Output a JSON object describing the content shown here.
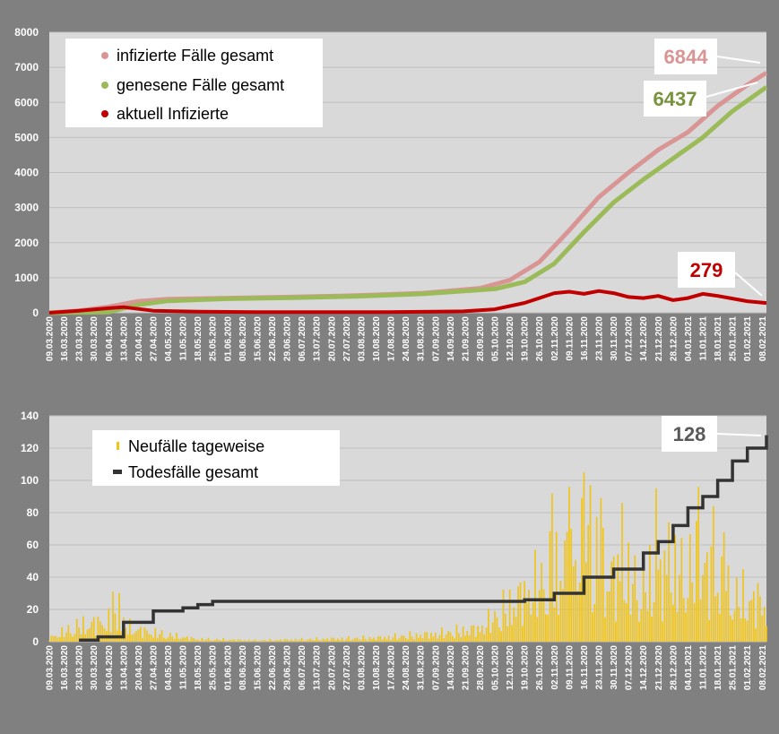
{
  "chart_data": [
    {
      "type": "line",
      "ylim": [
        0,
        8000
      ],
      "yticks": [
        0,
        1000,
        2000,
        3000,
        4000,
        5000,
        6000,
        7000,
        8000
      ],
      "xlim": [
        "2020-03-09",
        "2021-02-10"
      ],
      "xtick_labels": [
        "09.03.2020",
        "16.03.2020",
        "23.03.2020",
        "30.03.2020",
        "06.04.2020",
        "13.04.2020",
        "20.04.2020",
        "27.04.2020",
        "04.05.2020",
        "11.05.2020",
        "18.05.2020",
        "25.05.2020",
        "01.06.2020",
        "08.06.2020",
        "15.06.2020",
        "22.06.2020",
        "29.06.2020",
        "06.07.2020",
        "13.07.2020",
        "20.07.2020",
        "27.07.2020",
        "03.08.2020",
        "10.08.2020",
        "17.08.2020",
        "24.08.2020",
        "31.08.2020",
        "07.09.2020",
        "14.09.2020",
        "21.09.2020",
        "28.09.2020",
        "05.10.2020",
        "12.10.2020",
        "19.10.2020",
        "26.10.2020",
        "02.11.2020",
        "09.11.2020",
        "16.11.2020",
        "23.11.2020",
        "30.11.2020",
        "07.12.2020",
        "14.12.2020",
        "21.12.2020",
        "28.12.2020",
        "04.01.2021",
        "11.01.2021",
        "18.01.2021",
        "25.01.2021",
        "01.02.2021",
        "08.02.2021"
      ],
      "grid": true,
      "legend_position": "top-left",
      "series": [
        {
          "name": "infizierte Fälle gesamt",
          "color": "#d99594",
          "points": [
            [
              "2020-03-09",
              0
            ],
            [
              "2020-03-23",
              60
            ],
            [
              "2020-04-06",
              170
            ],
            [
              "2020-04-20",
              330
            ],
            [
              "2020-05-04",
              390
            ],
            [
              "2020-06-01",
              420
            ],
            [
              "2020-07-01",
              450
            ],
            [
              "2020-08-01",
              490
            ],
            [
              "2020-09-01",
              560
            ],
            [
              "2020-09-28",
              700
            ],
            [
              "2020-10-12",
              930
            ],
            [
              "2020-10-26",
              1450
            ],
            [
              "2020-11-09",
              2350
            ],
            [
              "2020-11-23",
              3300
            ],
            [
              "2020-12-07",
              4000
            ],
            [
              "2020-12-21",
              4650
            ],
            [
              "2021-01-04",
              5150
            ],
            [
              "2021-01-18",
              5900
            ],
            [
              "2021-02-01",
              6500
            ],
            [
              "2021-02-10",
              6844
            ]
          ]
        },
        {
          "name": "genesene Fälle gesamt",
          "color": "#9bbb59",
          "points": [
            [
              "2020-03-09",
              0
            ],
            [
              "2020-04-06",
              20
            ],
            [
              "2020-04-20",
              230
            ],
            [
              "2020-05-04",
              340
            ],
            [
              "2020-06-01",
              400
            ],
            [
              "2020-07-01",
              430
            ],
            [
              "2020-08-01",
              470
            ],
            [
              "2020-09-01",
              540
            ],
            [
              "2020-10-05",
              680
            ],
            [
              "2020-10-19",
              880
            ],
            [
              "2020-11-02",
              1400
            ],
            [
              "2020-11-16",
              2300
            ],
            [
              "2020-11-30",
              3150
            ],
            [
              "2020-12-14",
              3800
            ],
            [
              "2020-12-28",
              4400
            ],
            [
              "2021-01-11",
              5000
            ],
            [
              "2021-01-25",
              5750
            ],
            [
              "2021-02-10",
              6437
            ]
          ]
        },
        {
          "name": "aktuell Infizierte",
          "color": "#c00000",
          "points": [
            [
              "2020-03-09",
              0
            ],
            [
              "2020-03-23",
              60
            ],
            [
              "2020-04-06",
              130
            ],
            [
              "2020-04-13",
              160
            ],
            [
              "2020-04-27",
              60
            ],
            [
              "2020-05-18",
              30
            ],
            [
              "2020-06-15",
              20
            ],
            [
              "2020-08-15",
              20
            ],
            [
              "2020-09-20",
              40
            ],
            [
              "2020-10-05",
              100
            ],
            [
              "2020-10-19",
              280
            ],
            [
              "2020-11-02",
              560
            ],
            [
              "2020-11-09",
              600
            ],
            [
              "2020-11-16",
              540
            ],
            [
              "2020-11-23",
              620
            ],
            [
              "2020-11-30",
              560
            ],
            [
              "2020-12-07",
              450
            ],
            [
              "2020-12-14",
              420
            ],
            [
              "2020-12-21",
              480
            ],
            [
              "2020-12-28",
              360
            ],
            [
              "2021-01-04",
              420
            ],
            [
              "2021-01-11",
              540
            ],
            [
              "2021-01-18",
              480
            ],
            [
              "2021-02-01",
              330
            ],
            [
              "2021-02-10",
              279
            ]
          ]
        }
      ],
      "callouts": [
        {
          "text": "6844",
          "color": "#d99594"
        },
        {
          "text": "6437",
          "color": "#77933c"
        },
        {
          "text": "279",
          "color": "#c00000"
        }
      ]
    },
    {
      "type": "bar+line",
      "ylim": [
        0,
        140
      ],
      "yticks": [
        0,
        20,
        40,
        60,
        80,
        100,
        120,
        140
      ],
      "xlim": [
        "2020-03-09",
        "2021-02-10"
      ],
      "xtick_labels": [
        "09.03.2020",
        "16.03.2020",
        "23.03.2020",
        "30.03.2020",
        "06.04.2020",
        "13.04.2020",
        "20.04.2020",
        "27.04.2020",
        "04.05.2020",
        "11.05.2020",
        "18.05.2020",
        "25.05.2020",
        "01.06.2020",
        "08.06.2020",
        "15.06.2020",
        "22.06.2020",
        "29.06.2020",
        "06.07.2020",
        "13.07.2020",
        "20.07.2020",
        "27.07.2020",
        "03.08.2020",
        "10.08.2020",
        "17.08.2020",
        "24.08.2020",
        "31.08.2020",
        "07.09.2020",
        "14.09.2020",
        "21.09.2020",
        "28.09.2020",
        "05.10.2020",
        "12.10.2020",
        "19.10.2020",
        "26.10.2020",
        "02.11.2020",
        "09.11.2020",
        "16.11.2020",
        "23.11.2020",
        "30.11.2020",
        "07.12.2020",
        "14.12.2020",
        "21.12.2020",
        "28.12.2020",
        "04.01.2021",
        "11.01.2021",
        "18.01.2021",
        "25.01.2021",
        "01.02.2021",
        "08.02.2021"
      ],
      "grid": true,
      "legend_position": "top-left",
      "series": [
        {
          "name": "Neufälle tageweise",
          "kind": "bar",
          "color": "#f0c419",
          "envelope": [
            [
              "2020-03-09",
              3
            ],
            [
              "2020-03-23",
              12
            ],
            [
              "2020-04-06",
              16
            ],
            [
              "2020-04-20",
              9
            ],
            [
              "2020-05-04",
              5
            ],
            [
              "2020-05-18",
              2
            ],
            [
              "2020-06-15",
              1
            ],
            [
              "2020-07-13",
              2
            ],
            [
              "2020-08-10",
              3
            ],
            [
              "2020-09-07",
              6
            ],
            [
              "2020-09-28",
              10
            ],
            [
              "2020-10-12",
              28
            ],
            [
              "2020-10-26",
              45
            ],
            [
              "2020-11-09",
              65
            ],
            [
              "2020-11-16",
              68
            ],
            [
              "2020-11-30",
              50
            ],
            [
              "2020-12-14",
              45
            ],
            [
              "2020-12-28",
              52
            ],
            [
              "2021-01-11",
              58
            ],
            [
              "2021-01-25",
              35
            ],
            [
              "2021-02-10",
              30
            ]
          ],
          "peaks": [
            [
              "2020-04-08",
              31
            ],
            [
              "2020-04-11",
              30
            ],
            [
              "2020-11-01",
              92
            ],
            [
              "2020-11-09",
              96
            ],
            [
              "2020-11-16",
              105
            ],
            [
              "2020-11-19",
              97
            ],
            [
              "2020-11-24",
              89
            ],
            [
              "2020-12-04",
              86
            ],
            [
              "2020-12-20",
              95
            ],
            [
              "2020-12-26",
              74
            ],
            [
              "2021-01-09",
              96
            ],
            [
              "2021-01-16",
              84
            ],
            [
              "2021-01-21",
              68
            ]
          ]
        },
        {
          "name": "Todesfälle gesamt",
          "kind": "step",
          "color": "#333333",
          "points": [
            [
              "2020-03-23",
              1
            ],
            [
              "2020-04-01",
              3
            ],
            [
              "2020-04-13",
              12
            ],
            [
              "2020-04-27",
              19
            ],
            [
              "2020-05-11",
              21
            ],
            [
              "2020-05-18",
              23
            ],
            [
              "2020-05-25",
              25
            ],
            [
              "2020-10-19",
              26
            ],
            [
              "2020-11-02",
              30
            ],
            [
              "2020-11-16",
              40
            ],
            [
              "2020-11-30",
              45
            ],
            [
              "2020-12-14",
              55
            ],
            [
              "2020-12-21",
              62
            ],
            [
              "2020-12-28",
              72
            ],
            [
              "2021-01-04",
              83
            ],
            [
              "2021-01-11",
              90
            ],
            [
              "2021-01-18",
              100
            ],
            [
              "2021-01-25",
              112
            ],
            [
              "2021-02-01",
              120
            ],
            [
              "2021-02-10",
              128
            ]
          ]
        }
      ],
      "callouts": [
        {
          "text": "128",
          "color": "#595959"
        }
      ]
    }
  ]
}
